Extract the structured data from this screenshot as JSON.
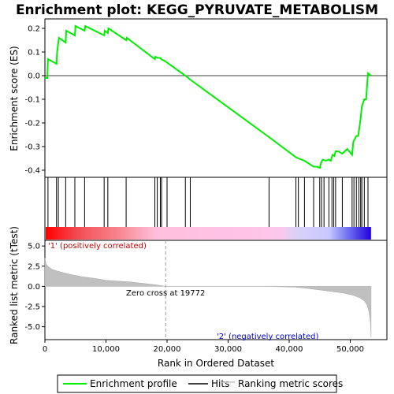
{
  "chart_data": {
    "type": "line",
    "title": "Enrichment plot: KEGG_PYRUVATE_METABOLISM",
    "xlabel": "Rank in Ordered Dataset",
    "x_ticks": [
      0,
      10000,
      20000,
      30000,
      40000,
      50000
    ],
    "x_tick_labels": [
      "0",
      "10,000",
      "20,000",
      "30,000",
      "40,000",
      "50,000"
    ],
    "xlim": [
      0,
      56000
    ],
    "enrichment_panel": {
      "ylabel": "Enrichment score (ES)",
      "ylim": [
        -0.43,
        0.24
      ],
      "y_ticks": [
        -0.4,
        -0.3,
        -0.2,
        -0.1,
        0.0,
        0.1,
        0.2
      ],
      "y_tick_labels": [
        "-0.4",
        "-0.3",
        "-0.2",
        "-0.1",
        "0.0",
        "0.1",
        "0.2"
      ],
      "series": [
        {
          "name": "Enrichment profile",
          "color": "#00ee00",
          "x": [
            0,
            400,
            500,
            1900,
            2000,
            2300,
            3400,
            3500,
            4900,
            5000,
            6500,
            6600,
            9700,
            9800,
            10300,
            10400,
            13300,
            13400,
            18000,
            18100,
            18500,
            18900,
            19000,
            19772,
            20000,
            23000,
            23700,
            36700,
            41100,
            41500,
            42500,
            44000,
            44500,
            45000,
            45200,
            45500,
            46000,
            46500,
            46800,
            47100,
            47400,
            47600,
            48000,
            48700,
            49500,
            50300,
            50500,
            51000,
            51300,
            51500,
            51700,
            51900,
            52300,
            52600,
            52900,
            53400
          ],
          "y": [
            -0.01,
            -0.01,
            0.07,
            0.05,
            0.1,
            0.16,
            0.14,
            0.19,
            0.17,
            0.21,
            0.19,
            0.21,
            0.17,
            0.19,
            0.18,
            0.2,
            0.15,
            0.16,
            0.07,
            0.08,
            0.075,
            0.075,
            0.07,
            0.06,
            0.055,
            0.0,
            -0.015,
            -0.26,
            -0.345,
            -0.35,
            -0.36,
            -0.385,
            -0.385,
            -0.39,
            -0.37,
            -0.355,
            -0.36,
            -0.355,
            -0.36,
            -0.335,
            -0.34,
            -0.32,
            -0.32,
            -0.33,
            -0.31,
            -0.335,
            -0.28,
            -0.255,
            -0.255,
            -0.22,
            -0.18,
            -0.13,
            -0.1,
            -0.1,
            0.01,
            0.0
          ]
        }
      ],
      "ranking_color_bar": "gradient red (positive) to pink to blue (negative)"
    },
    "hits": {
      "name": "Hits",
      "x": [
        500,
        1900,
        2200,
        3400,
        4900,
        6500,
        9700,
        10300,
        13300,
        18000,
        18400,
        18900,
        19100,
        20000,
        23000,
        23800,
        36700,
        41100,
        41500,
        42500,
        44000,
        45000,
        45300,
        45700,
        46500,
        47000,
        47300,
        47600,
        48700,
        50300,
        50600,
        51000,
        51400,
        51700,
        51900,
        52300,
        52900
      ]
    },
    "ranked_list_panel": {
      "ylabel": "Ranked list metric (tTest)",
      "series_name": "Ranking metric scores",
      "color": "#c0c0c0",
      "ylim": [
        -6.6,
        5.7
      ],
      "y_ticks": [
        -5.0,
        -2.5,
        0.0,
        2.5,
        5.0
      ],
      "y_tick_labels": [
        "-5.0",
        "-2.5",
        "0.0",
        "2.5",
        "5.0"
      ],
      "x": [
        0,
        200,
        600,
        1200,
        2000,
        3000,
        4000,
        6000,
        8000,
        10000,
        14000,
        18000,
        19772,
        24000,
        30000,
        36000,
        41000,
        43000,
        45000,
        47000,
        49000,
        50500,
        51500,
        52300,
        52800,
        53100,
        53300,
        53400
      ],
      "y": [
        3.5,
        2.8,
        2.4,
        2.1,
        1.9,
        1.7,
        1.5,
        1.2,
        1.0,
        0.75,
        0.55,
        0.2,
        0.0,
        0.0,
        0.0,
        0.0,
        -0.1,
        -0.25,
        -0.45,
        -0.65,
        -0.85,
        -1.1,
        -1.4,
        -1.8,
        -2.4,
        -3.2,
        -4.5,
        -6.3
      ],
      "zero_cross_rank": 19772,
      "zero_cross_label": "Zero cross at 19772",
      "positive_label": "'1' (positively correlated)",
      "negative_label": "'2' (negatively correlated)"
    },
    "legend": {
      "placement": "bottom",
      "items": [
        {
          "label": "Enrichment profile",
          "color": "#00ee00"
        },
        {
          "label": "Hits",
          "color": "#000000"
        },
        {
          "label": "Ranking metric scores",
          "color": "#c0c0c0"
        }
      ]
    }
  }
}
